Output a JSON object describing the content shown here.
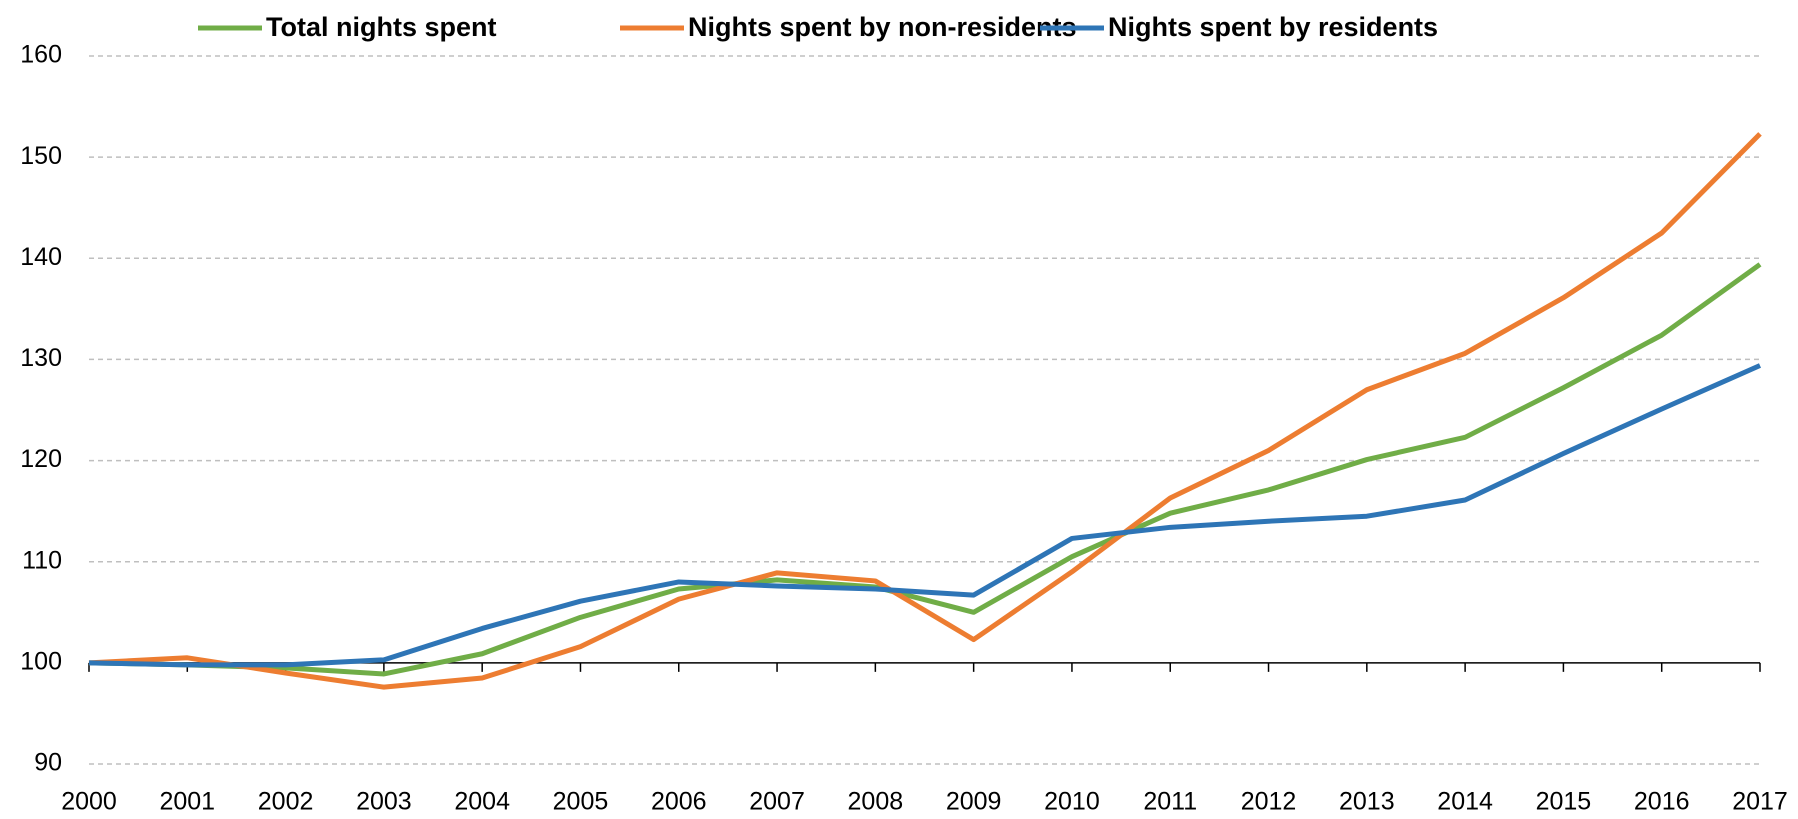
{
  "chart_data": {
    "type": "line",
    "x": [
      "2000",
      "2001",
      "2002",
      "2003",
      "2004",
      "2005",
      "2006",
      "2007",
      "2008",
      "2009",
      "2010",
      "2011",
      "2012",
      "2013",
      "2014",
      "2015",
      "2016",
      "2017"
    ],
    "series": [
      {
        "name": "Total nights spent",
        "color": "#70ad47",
        "values": [
          100,
          99.8,
          99.5,
          98.9,
          100.9,
          104.5,
          107.3,
          108.2,
          107.5,
          105,
          110.5,
          114.8,
          117.1,
          120.1,
          122.3,
          127.2,
          132.4,
          139.4
        ]
      },
      {
        "name": "Nights spent by non-residents",
        "color": "#ed7d31",
        "values": [
          100,
          100.5,
          99,
          97.6,
          98.5,
          101.6,
          106.3,
          108.9,
          108.1,
          102.3,
          109,
          116.3,
          121,
          127,
          130.6,
          136.1,
          142.5,
          152.3
        ]
      },
      {
        "name": "Nights spent by residents",
        "color": "#2e75b6",
        "values": [
          100,
          99.8,
          99.8,
          100.3,
          103.4,
          106.1,
          108,
          107.6,
          107.3,
          106.7,
          112.3,
          113.4,
          114,
          114.5,
          116.1,
          120.7,
          125.1,
          129.4
        ]
      }
    ],
    "ylim": [
      90,
      160
    ],
    "yticks": [
      90,
      100,
      110,
      120,
      130,
      140,
      150,
      160
    ],
    "x_axis_crossing": 100,
    "grid": true,
    "legend": "top"
  }
}
